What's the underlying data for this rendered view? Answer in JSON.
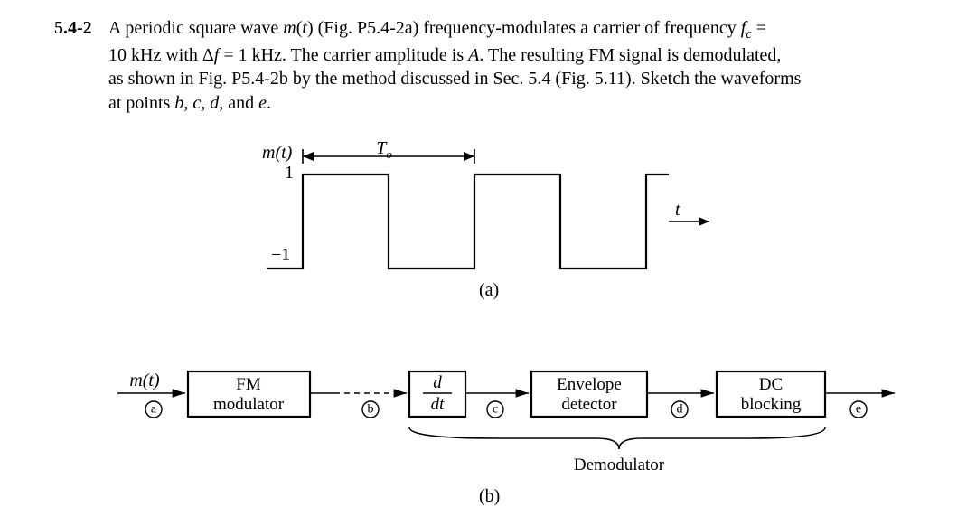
{
  "problem": {
    "number": "5.4-2",
    "line1_html": "A periodic square wave <span class='ital'>m</span>(<span class='ital'>t</span>) (Fig. P5.4-2a) frequency-modulates a carrier of frequency <span class='ital'>f<span class='sub'>c</span></span> =",
    "line2_html": "10 kHz with Δ<span class='ital'>f</span> = 1 kHz. The carrier amplitude is <span class='ital'>A</span>. The resulting FM signal is demodulated,",
    "line3_html": "as shown in Fig. P5.4-2b by the method discussed in Sec. 5.4 (Fig. 5.11). Sketch the waveforms",
    "line4_html": "at points <span class='ital'>b</span>, <span class='ital'>c</span>, <span class='ital'>d</span>, and <span class='ital'>e</span>."
  },
  "figA": {
    "caption": "(a)",
    "mt_label": "m(t)",
    "period_label": "T",
    "period_sub": "o",
    "y_hi": "1",
    "y_lo": "−1",
    "t_label": "t",
    "waveform": {
      "levels": {
        "high": 1,
        "low": -1
      },
      "period_units": 4,
      "stroke_color": "#000000",
      "stroke_width": 2.2
    }
  },
  "figB": {
    "caption": "(b)",
    "input_label": "m(t)",
    "blocks": {
      "fm": {
        "line1": "FM",
        "line2": "modulator"
      },
      "diff": {
        "num": "d",
        "den": "dt"
      },
      "env": {
        "line1": "Envelope",
        "line2": "detector"
      },
      "dc": {
        "line1": "DC",
        "line2": "blocking"
      }
    },
    "nodes": {
      "a": "a",
      "b": "b",
      "c": "c",
      "d": "d",
      "e": "e"
    },
    "demod_label": "Demodulator",
    "colors": {
      "stroke": "#000000",
      "fill": "#ffffff"
    }
  }
}
